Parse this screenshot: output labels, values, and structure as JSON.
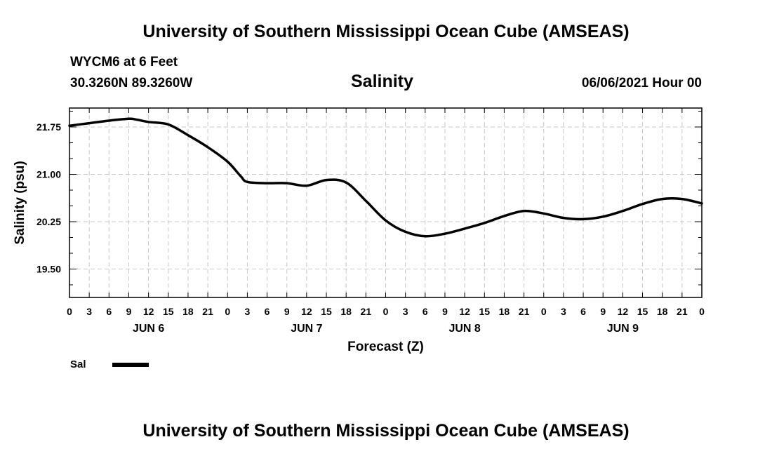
{
  "header": {
    "title": "University of Southern Mississippi Ocean Cube (AMSEAS)",
    "station": "WYCM6 at 6 Feet",
    "coords": "30.3260N  89.3260W",
    "datetime": "06/06/2021 Hour 00"
  },
  "footer": {
    "title": "University of Southern Mississippi Ocean Cube (AMSEAS)"
  },
  "legend": {
    "label": "Sal",
    "color": "#000000"
  },
  "chart_data": {
    "type": "line",
    "title": "Salinity",
    "xlabel": "Forecast (Z)",
    "ylabel": "Salinity (psu)",
    "xlim": [
      0,
      96
    ],
    "ylim": [
      19.05,
      22.05
    ],
    "grid": true,
    "yticks": [
      21.75,
      21.0,
      20.25,
      19.5
    ],
    "ytick_labels": [
      "21.75",
      "21.00",
      "20.25",
      "19.50"
    ],
    "xticks": [
      0,
      3,
      6,
      9,
      12,
      15,
      18,
      21,
      24,
      27,
      30,
      33,
      36,
      39,
      42,
      45,
      48,
      51,
      54,
      57,
      60,
      63,
      66,
      69,
      72,
      75,
      78,
      81,
      84,
      87,
      90,
      93,
      96
    ],
    "xtick_labels": [
      "0",
      "3",
      "6",
      "9",
      "12",
      "15",
      "18",
      "21",
      "0",
      "3",
      "6",
      "9",
      "12",
      "15",
      "18",
      "21",
      "0",
      "3",
      "6",
      "9",
      "12",
      "15",
      "18",
      "21",
      "0",
      "3",
      "6",
      "9",
      "12",
      "15",
      "18",
      "21",
      "0"
    ],
    "day_labels": [
      {
        "x": 12,
        "label": "JUN 6"
      },
      {
        "x": 36,
        "label": "JUN 7"
      },
      {
        "x": 60,
        "label": "JUN 8"
      },
      {
        "x": 84,
        "label": "JUN 9"
      }
    ],
    "series": [
      {
        "name": "Sal",
        "x": [
          0,
          3,
          6,
          9,
          10,
          12,
          15,
          18,
          21,
          24,
          26,
          27,
          30,
          33,
          36,
          39,
          42,
          45,
          48,
          51,
          54,
          57,
          60,
          63,
          66,
          69,
          72,
          75,
          78,
          81,
          84,
          87,
          90,
          93,
          96
        ],
        "values": [
          21.77,
          21.81,
          21.85,
          21.88,
          21.87,
          21.83,
          21.79,
          21.62,
          21.43,
          21.2,
          20.97,
          20.88,
          20.86,
          20.86,
          20.82,
          20.91,
          20.87,
          20.58,
          20.27,
          20.09,
          20.02,
          20.06,
          20.14,
          20.23,
          20.34,
          20.42,
          20.38,
          20.31,
          20.29,
          20.33,
          20.42,
          20.53,
          20.61,
          20.61,
          20.54
        ]
      }
    ]
  }
}
